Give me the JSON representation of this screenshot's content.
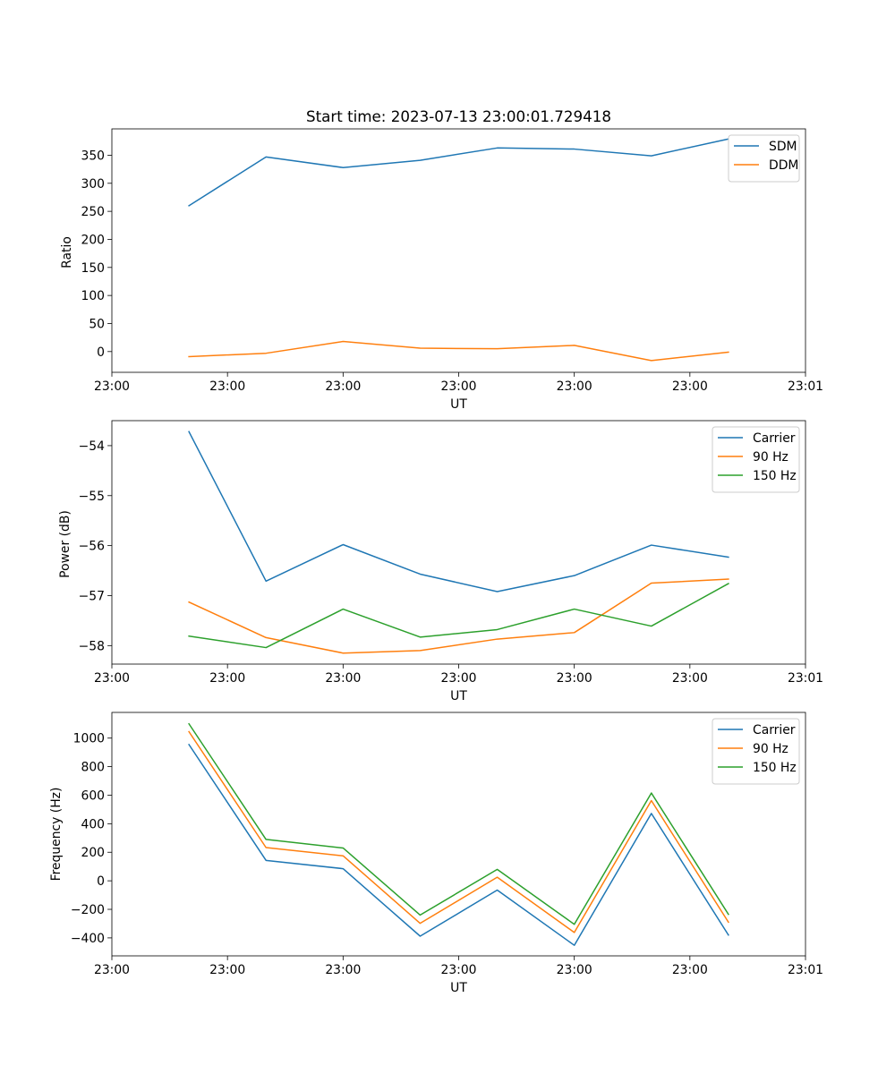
{
  "chart_data": [
    {
      "type": "line",
      "title": "Start time: 2023-07-13 23:00:01.729418",
      "xlabel": "UT",
      "ylabel": "Ratio",
      "x": [
        1,
        2,
        3,
        4,
        5,
        6,
        7,
        8
      ],
      "xlim": [
        0,
        9
      ],
      "x_ticks": [
        0,
        1.5,
        3,
        4.5,
        6,
        7.5,
        9
      ],
      "x_tick_labels": [
        "23:00",
        "23:00",
        "23:00",
        "23:00",
        "23:00",
        "23:00",
        "23:01"
      ],
      "ylim": [
        -37,
        397
      ],
      "y_ticks": [
        0,
        50,
        100,
        150,
        200,
        250,
        300,
        350
      ],
      "y_tick_labels": [
        "0",
        "50",
        "100",
        "150",
        "200",
        "250",
        "300",
        "350"
      ],
      "legend": "top-right",
      "grid": false,
      "series": [
        {
          "name": "SDM",
          "color": "#1f77b4",
          "values": [
            260,
            347,
            328,
            341,
            363,
            361,
            349,
            379
          ]
        },
        {
          "name": "DDM",
          "color": "#ff7f0e",
          "values": [
            -9,
            -3,
            18,
            6,
            5,
            11,
            -16,
            -1
          ]
        }
      ]
    },
    {
      "type": "line",
      "title": "",
      "xlabel": "UT",
      "ylabel": "Power (dB)",
      "x": [
        1,
        2,
        3,
        4,
        5,
        6,
        7,
        8
      ],
      "xlim": [
        0,
        9
      ],
      "x_ticks": [
        0,
        1.5,
        3,
        4.5,
        6,
        7.5,
        9
      ],
      "x_tick_labels": [
        "23:00",
        "23:00",
        "23:00",
        "23:00",
        "23:00",
        "23:00",
        "23:01"
      ],
      "ylim": [
        -58.37,
        -53.5
      ],
      "y_ticks": [
        -54,
        -55,
        -56,
        -57,
        -58
      ],
      "y_tick_labels": [
        "−54",
        "−55",
        "−56",
        "−57",
        "−58"
      ],
      "legend": "top-right",
      "grid": false,
      "series": [
        {
          "name": "Carrier",
          "color": "#1f77b4",
          "values": [
            -53.72,
            -56.71,
            -55.98,
            -56.57,
            -56.92,
            -56.6,
            -55.99,
            -56.23
          ]
        },
        {
          "name": "90 Hz",
          "color": "#ff7f0e",
          "values": [
            -57.13,
            -57.84,
            -58.15,
            -58.1,
            -57.87,
            -57.74,
            -56.75,
            -56.67
          ]
        },
        {
          "name": "150 Hz",
          "color": "#2ca02c",
          "values": [
            -57.81,
            -58.04,
            -57.27,
            -57.83,
            -57.68,
            -57.27,
            -57.61,
            -56.76
          ]
        }
      ]
    },
    {
      "type": "line",
      "title": "",
      "xlabel": "UT",
      "ylabel": "Frequency (Hz)",
      "x": [
        1,
        2,
        3,
        4,
        5,
        6,
        7,
        8
      ],
      "xlim": [
        0,
        9
      ],
      "x_ticks": [
        0,
        1.5,
        3,
        4.5,
        6,
        7.5,
        9
      ],
      "x_tick_labels": [
        "23:00",
        "23:00",
        "23:00",
        "23:00",
        "23:00",
        "23:00",
        "23:01"
      ],
      "ylim": [
        -526,
        1180
      ],
      "y_ticks": [
        1000,
        800,
        600,
        400,
        200,
        0,
        -200,
        -400
      ],
      "y_tick_labels": [
        "1000",
        "800",
        "600",
        "400",
        "200",
        "0",
        "−200",
        "−400"
      ],
      "legend": "top-right",
      "grid": false,
      "series": [
        {
          "name": "Carrier",
          "color": "#1f77b4",
          "values": [
            955,
            143,
            85,
            -388,
            -65,
            -452,
            472,
            -380
          ]
        },
        {
          "name": "90 Hz",
          "color": "#ff7f0e",
          "values": [
            1045,
            233,
            175,
            -298,
            25,
            -362,
            562,
            -290
          ]
        },
        {
          "name": "150 Hz",
          "color": "#2ca02c",
          "values": [
            1100,
            290,
            230,
            -240,
            80,
            -305,
            615,
            -235
          ]
        }
      ]
    }
  ]
}
